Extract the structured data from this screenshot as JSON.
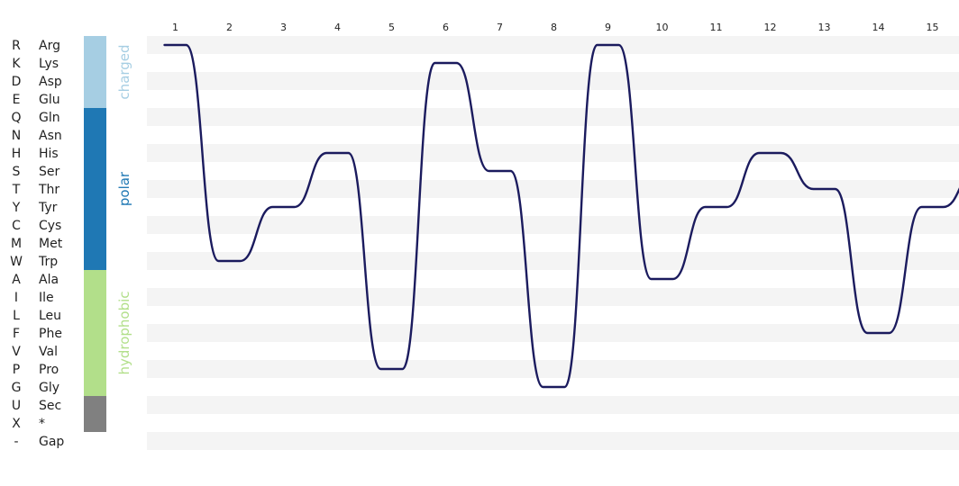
{
  "chart_data": {
    "type": "line",
    "x": [
      1,
      2,
      3,
      4,
      5,
      6,
      7,
      8,
      9,
      10,
      11,
      12,
      13,
      14,
      15
    ],
    "y_codes": [
      "R",
      "K",
      "D",
      "E",
      "Q",
      "N",
      "H",
      "S",
      "T",
      "Y",
      "C",
      "M",
      "W",
      "A",
      "I",
      "L",
      "F",
      "V",
      "P",
      "G",
      "U",
      "X",
      "-"
    ],
    "y_names": [
      "Arg",
      "Lys",
      "Asp",
      "Glu",
      "Gln",
      "Asn",
      "His",
      "Ser",
      "Thr",
      "Tyr",
      "Cys",
      "Met",
      "Trp",
      "Ala",
      "Ile",
      "Leu",
      "Phe",
      "Val",
      "Pro",
      "Gly",
      "Sec",
      "*",
      "Gap"
    ],
    "groups": [
      {
        "label": "charged",
        "start": 0,
        "end": 3,
        "color": "#a6cee3"
      },
      {
        "label": "polar",
        "start": 4,
        "end": 12,
        "color": "#1f78b4"
      },
      {
        "label": "hydrophobic",
        "start": 13,
        "end": 19,
        "color": "#b2df8a"
      },
      {
        "label": "",
        "start": 20,
        "end": 21,
        "color": "#808080"
      }
    ],
    "series": [
      {
        "values": [
          "R",
          "W",
          "Y",
          "H",
          "P",
          "K",
          "S",
          "G",
          "R",
          "A",
          "Y",
          "H",
          "T",
          "F",
          "Y"
        ],
        "color": "#1b1b5e"
      }
    ],
    "trail_to": "S",
    "grid": "alternating-bands"
  }
}
